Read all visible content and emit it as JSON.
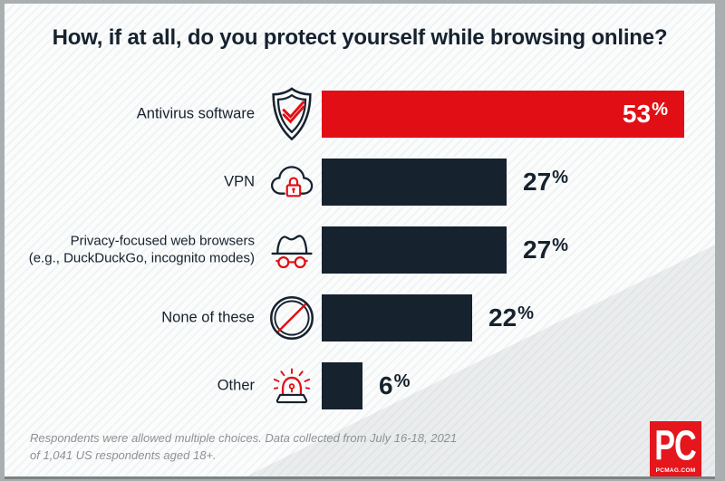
{
  "title": "How, if at all, do you protect yourself while browsing online?",
  "chart_data": {
    "type": "bar",
    "orientation": "horizontal",
    "title": "How, if at all, do you protect yourself while browsing online?",
    "categories": [
      "Antivirus software",
      "VPN",
      "Privacy-focused web browsers (e.g., DuckDuckGo, incognito modes)",
      "None of these",
      "Other"
    ],
    "values": [
      53,
      27,
      27,
      22,
      6
    ],
    "value_labels": [
      "53%",
      "27%",
      "27%",
      "22%",
      "6%"
    ],
    "unit": "percent",
    "xlim": [
      0,
      53
    ],
    "grid": false,
    "legend": "none",
    "bar_colors": [
      "#e10f15",
      "#16222e",
      "#16222e",
      "#16222e",
      "#16222e"
    ],
    "notes": "Respondents were allowed multiple choices. Data collected from July 16-18, 2021 of 1,041 US respondents aged 18+."
  },
  "rows": [
    {
      "label_lines": [
        "Antivirus software"
      ],
      "icon": "shield-check-icon",
      "value": 53,
      "value_label": "53%",
      "color": "#e10f15",
      "value_inside": true
    },
    {
      "label_lines": [
        "VPN"
      ],
      "icon": "cloud-lock-icon",
      "value": 27,
      "value_label": "27%",
      "color": "#16222e",
      "value_inside": false
    },
    {
      "label_lines": [
        "Privacy-focused web browsers",
        "(e.g., DuckDuckGo, incognito modes)"
      ],
      "icon": "incognito-icon",
      "value": 27,
      "value_label": "27%",
      "color": "#16222e",
      "value_inside": false
    },
    {
      "label_lines": [
        "None of these"
      ],
      "icon": "prohibition-icon",
      "value": 22,
      "value_label": "22%",
      "color": "#16222e",
      "value_inside": false
    },
    {
      "label_lines": [
        "Other"
      ],
      "icon": "siren-icon",
      "value": 6,
      "value_label": "6%",
      "color": "#16222e",
      "value_inside": false
    }
  ],
  "footer": {
    "line1": "Respondents were allowed multiple choices. Data collected from July 16-18, 2021",
    "line2": "of 1,041 US respondents aged 18+."
  },
  "logo": {
    "text": "PC",
    "domain": "PCMAG.COM"
  },
  "colors": {
    "accent_red": "#e10f15",
    "navy": "#16222e",
    "inside_value_text": "#ffffff",
    "frame_gray": "#a9aeb1",
    "footer_gray": "#8e9194",
    "logo_red": "#e5161c"
  }
}
